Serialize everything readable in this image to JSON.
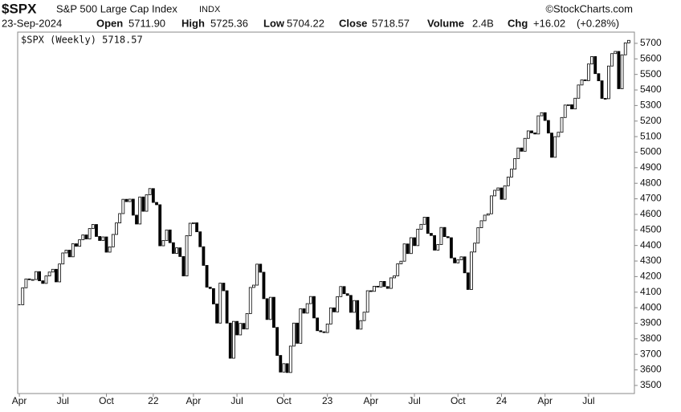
{
  "header": {
    "symbol": "$SPX",
    "name": "S&P 500 Large Cap Index",
    "exchange": "INDX",
    "source": "©StockCharts.com",
    "date": "23-Sep-2024",
    "open_label": "Open",
    "open": "5711.90",
    "high_label": "High",
    "high": "5725.36",
    "low_label": "Low",
    "low": "5704.22",
    "close_label": "Close",
    "close": "5718.57",
    "volume_label": "Volume",
    "volume": "2.4B",
    "chg_label": "Chg",
    "chg": "+16.02",
    "chg_pct": "(+0.28%)"
  },
  "chart_data": {
    "type": "candle",
    "legend": "$SPX (Weekly) 5718.57",
    "categories": [
      "Apr",
      null,
      null,
      null,
      null,
      null,
      null,
      null,
      null,
      null,
      null,
      null,
      null,
      "Jul",
      null,
      null,
      null,
      null,
      null,
      null,
      null,
      null,
      null,
      null,
      null,
      null,
      "Oct",
      null,
      null,
      null,
      null,
      null,
      null,
      null,
      null,
      null,
      null,
      null,
      null,
      null,
      "22",
      null,
      null,
      null,
      null,
      null,
      null,
      null,
      null,
      null,
      null,
      null,
      "Apr",
      null,
      null,
      null,
      null,
      null,
      null,
      null,
      null,
      null,
      null,
      null,
      null,
      "Jul",
      null,
      null,
      null,
      null,
      null,
      null,
      null,
      null,
      null,
      null,
      null,
      null,
      null,
      "Oct",
      null,
      null,
      null,
      null,
      null,
      null,
      null,
      null,
      null,
      null,
      null,
      null,
      "23",
      null,
      null,
      null,
      null,
      null,
      null,
      null,
      null,
      null,
      null,
      null,
      null,
      "Apr",
      null,
      null,
      null,
      null,
      null,
      null,
      null,
      null,
      null,
      null,
      null,
      null,
      "Jul",
      null,
      null,
      null,
      null,
      null,
      null,
      null,
      null,
      null,
      null,
      null,
      null,
      "Oct",
      null,
      null,
      null,
      null,
      null,
      null,
      null,
      null,
      null,
      null,
      null,
      null,
      "24",
      null,
      null,
      null,
      null,
      null,
      null,
      null,
      null,
      null,
      null,
      null,
      null,
      "Apr",
      null,
      null,
      null,
      null,
      null,
      null,
      null,
      null,
      null,
      null,
      null,
      null,
      "Jul",
      null,
      null,
      null,
      null,
      null,
      null,
      null,
      null,
      null,
      null,
      null,
      null
    ],
    "values": [
      4019,
      4128,
      4185,
      4180,
      4181,
      4232,
      4173,
      4156,
      4204,
      4229,
      4247,
      4166,
      4281,
      4352,
      4370,
      4327,
      4411,
      4395,
      4437,
      4468,
      4442,
      4509,
      4535,
      4458,
      4432,
      4455,
      4357,
      4391,
      4471,
      4545,
      4605,
      4697,
      4682,
      4698,
      4595,
      4538,
      4712,
      4620,
      4726,
      4766,
      4677,
      4662,
      4398,
      4432,
      4500,
      4418,
      4349,
      4385,
      4329,
      4204,
      4463,
      4543,
      4546,
      4488,
      4392,
      4272,
      4132,
      4123,
      4024,
      3901,
      4158,
      4109,
      3901,
      3675,
      3912,
      3825,
      3899,
      3863,
      3962,
      4130,
      4145,
      4280,
      4228,
      4058,
      3924,
      4067,
      3873,
      3693,
      3586,
      3640,
      3583,
      3753,
      3901,
      3771,
      3993,
      3965,
      4026,
      4072,
      3934,
      3852,
      3845,
      3840,
      3895,
      3999,
      3973,
      4071,
      4136,
      4090,
      4079,
      3970,
      4046,
      3862,
      3917,
      3971,
      4109,
      4105,
      4138,
      4133,
      4169,
      4136,
      4124,
      4192,
      4205,
      4282,
      4299,
      4410,
      4348,
      4450,
      4399,
      4505,
      4536,
      4582,
      4478,
      4464,
      4370,
      4406,
      4516,
      4457,
      4450,
      4320,
      4288,
      4308,
      4327,
      4224,
      4117,
      4358,
      4415,
      4514,
      4559,
      4595,
      4604,
      4719,
      4755,
      4770,
      4697,
      4784,
      4840,
      4891,
      4959,
      5027,
      5006,
      5089,
      5137,
      5124,
      5117,
      5234,
      5254,
      5204,
      5123,
      4967,
      5100,
      5128,
      5223,
      5303,
      5305,
      5278,
      5347,
      5432,
      5465,
      5460,
      5567,
      5615,
      5505,
      5459,
      5346,
      5344,
      5554,
      5634,
      5648,
      5408,
      5626,
      5703,
      5719
    ],
    "up_color": "#ffffff",
    "down_color": "#000000",
    "ylim": [
      3448,
      5772
    ],
    "yticks": [
      3500,
      3600,
      3700,
      3800,
      3900,
      4000,
      4100,
      4200,
      4300,
      4400,
      4500,
      4600,
      4700,
      4800,
      4900,
      5000,
      5100,
      5200,
      5300,
      5400,
      5500,
      5600,
      5700
    ]
  }
}
